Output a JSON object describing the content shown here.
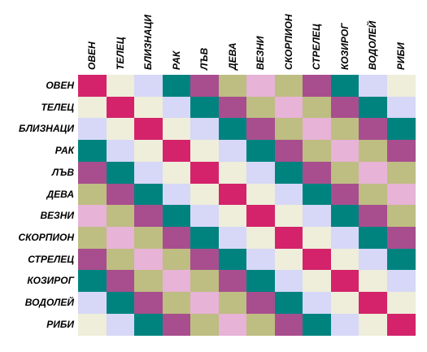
{
  "signs": [
    "ОВЕН",
    "ТЕЛЕЦ",
    "БЛИЗНАЦИ",
    "РАК",
    "ЛЪВ",
    "ДЕВА",
    "ВЕЗНИ",
    "СКОРПИОН",
    "СТРЕЛЕЦ",
    "КОЗИРОГ",
    "ВОДОЛЕЙ",
    "РИБИ"
  ],
  "palette": {
    "P": "#D4236B",
    "C": "#EEEEDA",
    "L": "#D7D7F7",
    "T": "#00837F",
    "M": "#A84E8E",
    "O": "#BEBD82",
    "K": "#E7B3D6"
  },
  "matrix": [
    [
      "P",
      "C",
      "L",
      "T",
      "M",
      "O",
      "K",
      "O",
      "M",
      "T",
      "L",
      "C"
    ],
    [
      "C",
      "P",
      "C",
      "L",
      "T",
      "M",
      "O",
      "K",
      "O",
      "M",
      "T",
      "L"
    ],
    [
      "L",
      "C",
      "P",
      "C",
      "L",
      "T",
      "M",
      "O",
      "K",
      "O",
      "M",
      "T"
    ],
    [
      "T",
      "L",
      "C",
      "P",
      "C",
      "L",
      "T",
      "M",
      "O",
      "K",
      "O",
      "M"
    ],
    [
      "M",
      "T",
      "L",
      "C",
      "P",
      "C",
      "L",
      "T",
      "M",
      "O",
      "K",
      "O"
    ],
    [
      "O",
      "M",
      "T",
      "L",
      "C",
      "P",
      "C",
      "L",
      "T",
      "M",
      "O",
      "K"
    ],
    [
      "K",
      "O",
      "M",
      "T",
      "L",
      "C",
      "P",
      "C",
      "L",
      "T",
      "M",
      "O"
    ],
    [
      "O",
      "K",
      "O",
      "M",
      "T",
      "L",
      "C",
      "P",
      "C",
      "L",
      "T",
      "M"
    ],
    [
      "M",
      "O",
      "K",
      "O",
      "M",
      "T",
      "L",
      "C",
      "P",
      "C",
      "L",
      "T"
    ],
    [
      "T",
      "M",
      "O",
      "K",
      "O",
      "M",
      "T",
      "L",
      "C",
      "P",
      "C",
      "L"
    ],
    [
      "L",
      "T",
      "M",
      "O",
      "K",
      "O",
      "M",
      "T",
      "L",
      "C",
      "P",
      "C"
    ],
    [
      "C",
      "L",
      "T",
      "M",
      "O",
      "K",
      "O",
      "M",
      "T",
      "L",
      "C",
      "P"
    ]
  ]
}
